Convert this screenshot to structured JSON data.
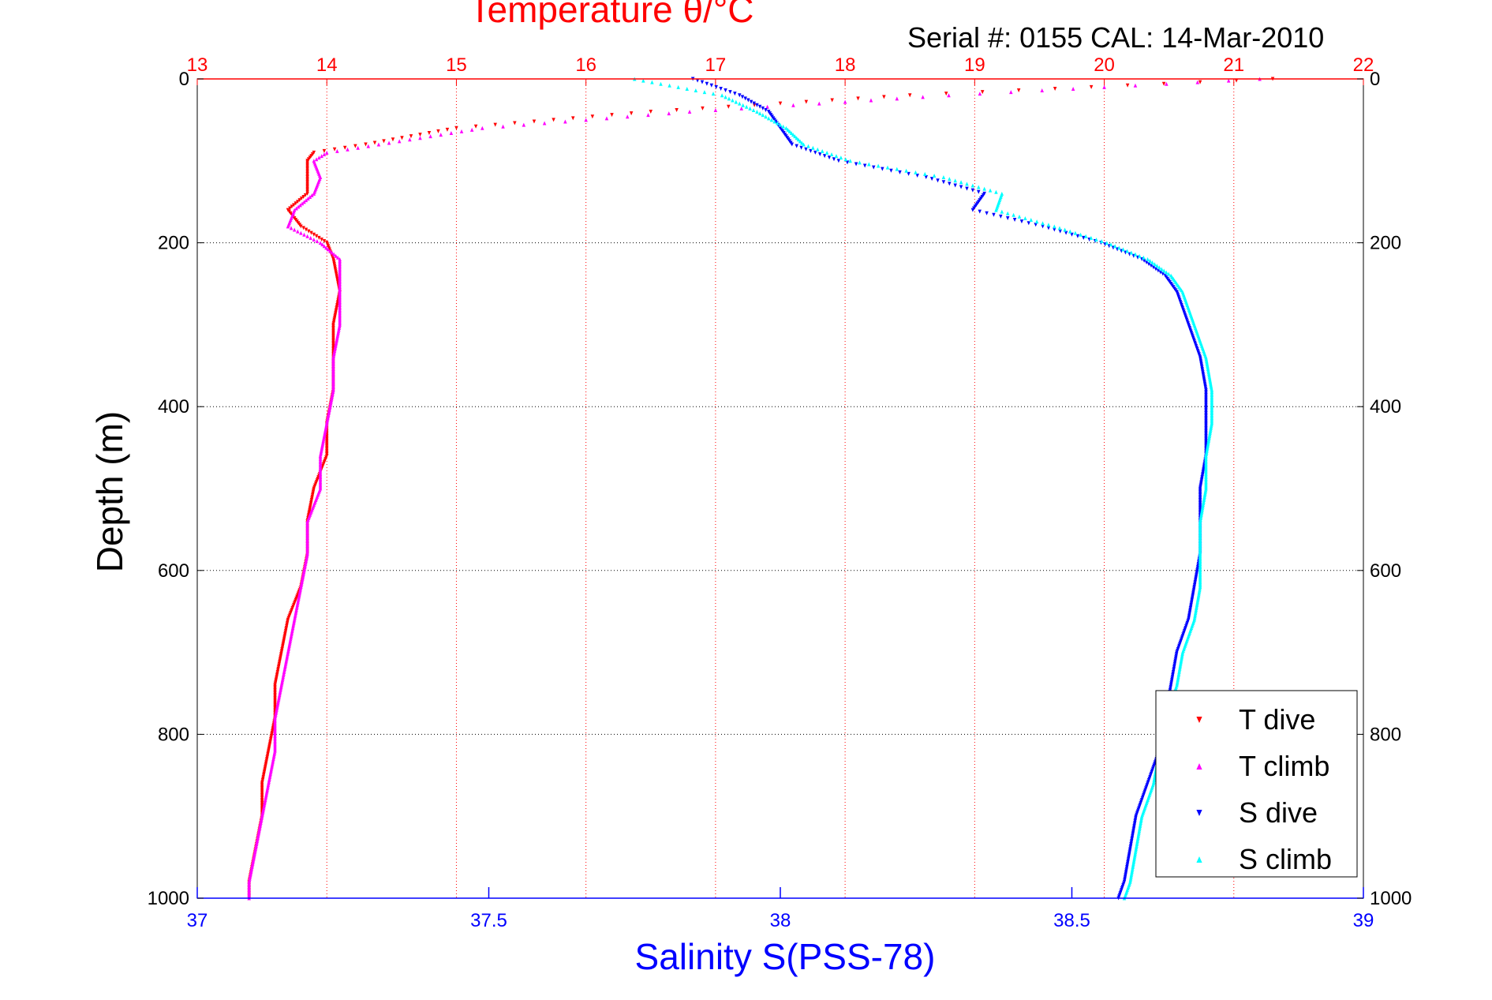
{
  "chart_data": {
    "type": "scatter",
    "title": "Temperature θ/°C",
    "subtitle": "Serial #: 0155  CAL: 14-Mar-2010",
    "ylabel": "Depth (m)",
    "xlabel": "Salinity S(PSS-78)",
    "x_top_label": "Temperature θ/°C",
    "y_axis": {
      "range": [
        0,
        1000
      ],
      "reversed": true,
      "ticks": [
        "0",
        "200",
        "400",
        "600",
        "800",
        "1000"
      ]
    },
    "x_bottom_axis": {
      "quantity": "salinity",
      "range": [
        37,
        39
      ],
      "ticks": [
        "37",
        "37.5",
        "38",
        "38.5",
        "39"
      ],
      "color": "#0000ff"
    },
    "x_top_axis": {
      "quantity": "temperature",
      "range": [
        13,
        22
      ],
      "ticks": [
        "13",
        "14",
        "15",
        "16",
        "17",
        "18",
        "19",
        "20",
        "21",
        "22"
      ],
      "color": "#ff0000"
    },
    "grid": {
      "horizontal": "dotted-black",
      "vertical": "dotted-red"
    },
    "legend": {
      "placement": "bottom-right",
      "entries": [
        "T dive",
        "T climb",
        "S dive",
        "S climb"
      ]
    },
    "series": [
      {
        "name": "T dive",
        "axis": "top",
        "marker": "triangle-down",
        "color": "#ff0000",
        "depth": [
          0,
          20,
          40,
          60,
          80,
          90,
          100,
          120,
          140,
          160,
          180,
          200,
          220,
          260,
          300,
          340,
          380,
          420,
          460,
          500,
          540,
          580,
          620,
          660,
          700,
          740,
          780,
          820,
          860,
          900,
          940,
          980,
          1000
        ],
        "temperature": [
          21.3,
          18.5,
          16.5,
          15.0,
          14.3,
          13.9,
          13.85,
          13.85,
          13.85,
          13.7,
          13.8,
          14.0,
          14.05,
          14.1,
          14.05,
          14.05,
          14.05,
          14.0,
          14.0,
          13.9,
          13.85,
          13.85,
          13.8,
          13.7,
          13.65,
          13.6,
          13.6,
          13.55,
          13.5,
          13.5,
          13.45,
          13.4,
          13.4
        ]
      },
      {
        "name": "T climb",
        "axis": "top",
        "marker": "triangle-up",
        "color": "#ff00ff",
        "depth": [
          0,
          20,
          40,
          60,
          80,
          90,
          100,
          120,
          140,
          160,
          180,
          200,
          220,
          260,
          300,
          340,
          380,
          420,
          460,
          500,
          540,
          580,
          620,
          660,
          700,
          740,
          780,
          820,
          860,
          900,
          940,
          980,
          1000
        ],
        "temperature": [
          21.2,
          18.8,
          16.8,
          15.2,
          14.4,
          14.0,
          13.9,
          13.95,
          13.9,
          13.75,
          13.7,
          13.95,
          14.1,
          14.1,
          14.1,
          14.05,
          14.05,
          14.0,
          13.95,
          13.95,
          13.85,
          13.85,
          13.8,
          13.75,
          13.7,
          13.65,
          13.6,
          13.6,
          13.55,
          13.5,
          13.45,
          13.4,
          13.4
        ]
      },
      {
        "name": "S dive",
        "axis": "bottom",
        "marker": "triangle-down",
        "color": "#0000ff",
        "depth": [
          0,
          20,
          40,
          60,
          80,
          100,
          120,
          140,
          160,
          180,
          200,
          220,
          240,
          260,
          300,
          340,
          380,
          420,
          460,
          500,
          540,
          580,
          620,
          660,
          700,
          740,
          780,
          820,
          860,
          900,
          940,
          980,
          1000
        ],
        "salinity": [
          37.85,
          37.93,
          37.98,
          38.0,
          38.02,
          38.1,
          38.25,
          38.35,
          38.33,
          38.45,
          38.55,
          38.62,
          38.66,
          38.68,
          38.7,
          38.72,
          38.73,
          38.73,
          38.73,
          38.72,
          38.72,
          38.72,
          38.71,
          38.7,
          38.68,
          38.67,
          38.66,
          38.65,
          38.63,
          38.61,
          38.6,
          38.59,
          38.58
        ]
      },
      {
        "name": "S climb",
        "axis": "bottom",
        "marker": "triangle-up",
        "color": "#00ffff",
        "depth": [
          0,
          20,
          40,
          60,
          80,
          100,
          120,
          140,
          160,
          180,
          200,
          220,
          240,
          260,
          300,
          340,
          380,
          420,
          460,
          500,
          540,
          580,
          620,
          660,
          700,
          740,
          780,
          820,
          860,
          900,
          940,
          980,
          1000
        ],
        "salinity": [
          37.75,
          37.9,
          37.96,
          38.01,
          38.04,
          38.12,
          38.28,
          38.38,
          38.37,
          38.47,
          38.56,
          38.63,
          38.67,
          38.69,
          38.71,
          38.73,
          38.74,
          38.74,
          38.73,
          38.73,
          38.72,
          38.72,
          38.72,
          38.71,
          38.69,
          38.68,
          38.66,
          38.65,
          38.64,
          38.62,
          38.61,
          38.6,
          38.59
        ]
      }
    ]
  }
}
